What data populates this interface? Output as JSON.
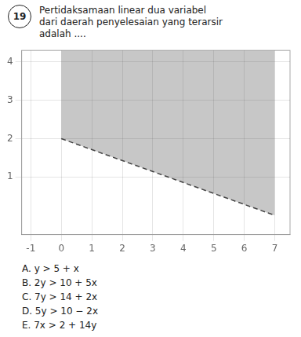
{
  "chart_data": {
    "type": "line",
    "title": [
      "Pertidaksamaan linear dua variabel",
      "dari daerah penyelesaian yang terarsir",
      "adalah ...."
    ],
    "annotations": [
      "19",
      "A. y > 5 + x",
      "B. 2y > 10 + 5x",
      "C. 7y > 14 + 2x",
      "D. 5y > 10 − 2x",
      "E. 7x > 2 + 14y"
    ],
    "x": [
      0,
      7
    ],
    "series": [
      {
        "values": [
          2,
          0
        ],
        "color": "#444444",
        "line_style": "dashed"
      }
    ],
    "xlim": [
      -1.3,
      7.5
    ],
    "xticks": [
      -1,
      0,
      1,
      2,
      3,
      4,
      5,
      6,
      7
    ],
    "ylim": [
      -0.5,
      4.3
    ],
    "yticks": [
      1,
      2,
      3,
      4
    ],
    "grid": true
  }
}
